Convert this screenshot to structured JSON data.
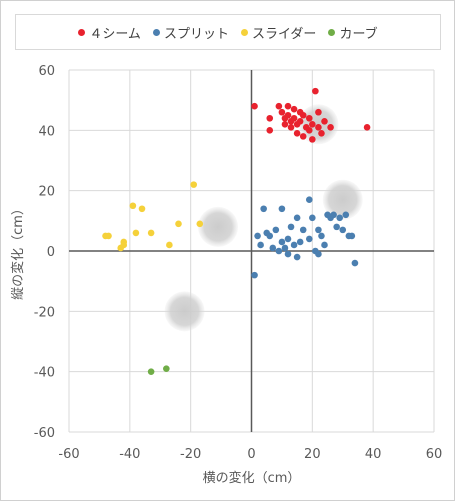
{
  "chart_data": {
    "type": "scatter",
    "xlabel": "横の変化（cm）",
    "ylabel": "縦の変化（cm）",
    "xlim": [
      -60,
      60
    ],
    "ylim": [
      -60,
      60
    ],
    "xticks": [
      -60,
      -40,
      -20,
      0,
      20,
      40,
      60
    ],
    "yticks": [
      -60,
      -40,
      -20,
      0,
      20,
      40,
      60
    ],
    "grid": true,
    "legend_position": "top",
    "series": [
      {
        "name": "４シーム",
        "color": "#e8222e",
        "points": [
          [
            1,
            48
          ],
          [
            6,
            44
          ],
          [
            6,
            40
          ],
          [
            9,
            48
          ],
          [
            10,
            46
          ],
          [
            11,
            44
          ],
          [
            11,
            42
          ],
          [
            12,
            48
          ],
          [
            12,
            45
          ],
          [
            13,
            43
          ],
          [
            13,
            41
          ],
          [
            14,
            47
          ],
          [
            14,
            44
          ],
          [
            15,
            42
          ],
          [
            15,
            39
          ],
          [
            16,
            46
          ],
          [
            16,
            43
          ],
          [
            17,
            45
          ],
          [
            17,
            38
          ],
          [
            18,
            41
          ],
          [
            19,
            44
          ],
          [
            19,
            40
          ],
          [
            20,
            42
          ],
          [
            20,
            37
          ],
          [
            21,
            53
          ],
          [
            22,
            46
          ],
          [
            22,
            41
          ],
          [
            23,
            39
          ],
          [
            24,
            43
          ],
          [
            26,
            41
          ],
          [
            38,
            41
          ]
        ]
      },
      {
        "name": "スプリット",
        "color": "#4b7fb0",
        "points": [
          [
            1,
            -8
          ],
          [
            2,
            5
          ],
          [
            3,
            2
          ],
          [
            4,
            14
          ],
          [
            5,
            6
          ],
          [
            6,
            5
          ],
          [
            7,
            1
          ],
          [
            8,
            7
          ],
          [
            9,
            0
          ],
          [
            10,
            14
          ],
          [
            10,
            3
          ],
          [
            11,
            1
          ],
          [
            12,
            4
          ],
          [
            12,
            -1
          ],
          [
            13,
            8
          ],
          [
            14,
            2
          ],
          [
            15,
            -2
          ],
          [
            15,
            11
          ],
          [
            16,
            3
          ],
          [
            17,
            7
          ],
          [
            19,
            17
          ],
          [
            19,
            4
          ],
          [
            20,
            11
          ],
          [
            21,
            0
          ],
          [
            22,
            -1
          ],
          [
            22,
            7
          ],
          [
            23,
            5
          ],
          [
            24,
            2
          ],
          [
            25,
            12
          ],
          [
            26,
            11
          ],
          [
            27,
            12
          ],
          [
            28,
            8
          ],
          [
            29,
            11
          ],
          [
            30,
            7
          ],
          [
            31,
            12
          ],
          [
            32,
            5
          ],
          [
            33,
            5
          ],
          [
            34,
            -4
          ]
        ]
      },
      {
        "name": "スライダー",
        "color": "#f5d13a",
        "points": [
          [
            -48,
            5
          ],
          [
            -47,
            5
          ],
          [
            -43,
            1
          ],
          [
            -42,
            3
          ],
          [
            -42,
            2
          ],
          [
            -39,
            15
          ],
          [
            -38,
            6
          ],
          [
            -36,
            14
          ],
          [
            -33,
            6
          ],
          [
            -27,
            2
          ],
          [
            -24,
            9
          ],
          [
            -19,
            22
          ],
          [
            -17,
            9
          ]
        ]
      },
      {
        "name": "カーブ",
        "color": "#70ad47",
        "points": [
          [
            -33,
            -40
          ],
          [
            -28,
            -39
          ]
        ]
      }
    ],
    "average_markers": [
      [
        22,
        42
      ],
      [
        30,
        17
      ],
      [
        -11,
        8
      ],
      [
        -22,
        -20
      ]
    ]
  }
}
